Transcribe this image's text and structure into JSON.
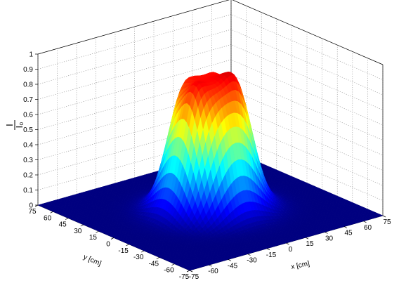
{
  "chart_data": {
    "type": "surface",
    "title": "",
    "x": {
      "label": "x [cm]",
      "ticks": [
        -75,
        -60,
        -45,
        -30,
        -15,
        0,
        15,
        30,
        45,
        60,
        75
      ],
      "tick_labels": [
        "-75",
        "-60",
        "-45",
        "-30",
        "-15",
        "0",
        "15",
        "30",
        "45",
        "60",
        "75"
      ],
      "range": [
        -75,
        75
      ]
    },
    "y": {
      "label": "y [cm]",
      "ticks": [
        -75,
        -60,
        -45,
        -30,
        -15,
        0,
        15,
        30,
        45,
        60,
        75
      ],
      "tick_labels": [
        "-75",
        "-60",
        "-45",
        "-30",
        "-15",
        "0",
        "15",
        "30",
        "45",
        "60",
        "75"
      ],
      "range": [
        -75,
        75
      ]
    },
    "z": {
      "label_top": "I",
      "label_bottom": "I₀",
      "ticks": [
        0,
        0.1,
        0.2,
        0.3,
        0.4,
        0.5,
        0.6,
        0.7,
        0.8,
        0.9,
        1
      ],
      "tick_labels": [
        "0",
        "0.1",
        "0.2",
        "0.3",
        "0.4",
        "0.5",
        "0.6",
        "0.7",
        "0.8",
        "0.9",
        "1"
      ],
      "range": [
        0,
        1
      ]
    },
    "colormap": "jet",
    "grid": true,
    "surface": {
      "description_values": {
        "flat_top_half_width_cm": 27,
        "peak_positions_cm": [
          [
            -8,
            20
          ],
          [
            15,
            15
          ],
          [
            12,
            -10
          ],
          [
            -18,
            -5
          ]
        ],
        "peak_value": 1.0,
        "center_dip_value": 0.85,
        "baseline_value": 0.0
      }
    }
  }
}
